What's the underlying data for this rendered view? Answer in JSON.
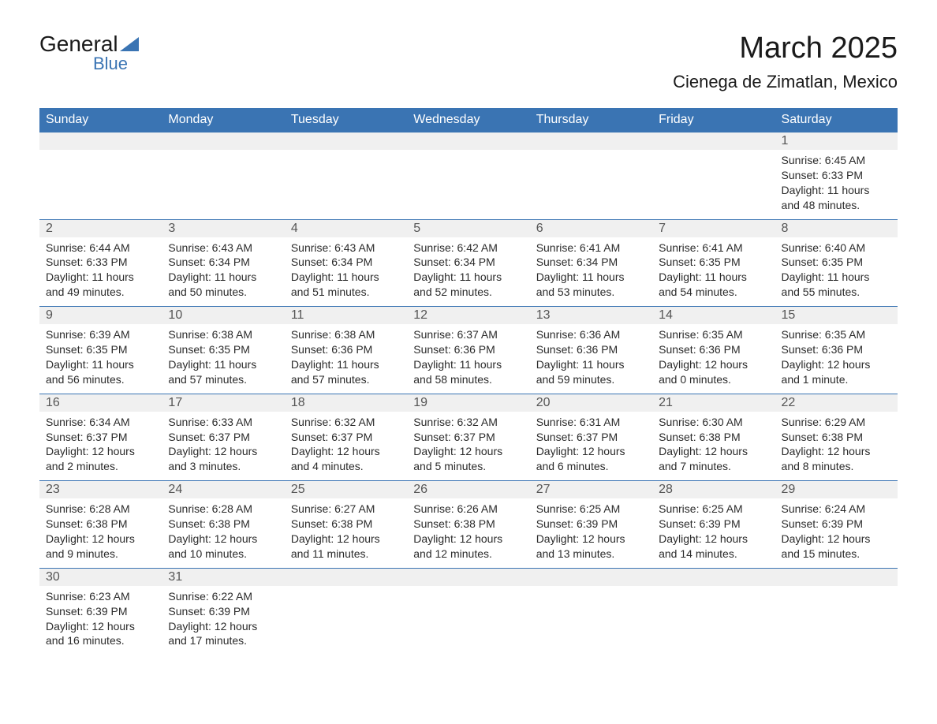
{
  "colors": {
    "primary_blue": "#3a74b3",
    "header_row_bg": "#f0f0f0",
    "text_dark": "#1a1a1a",
    "text_body": "#2b2b2b",
    "white": "#ffffff"
  },
  "logo": {
    "text1": "General",
    "text2": "Blue"
  },
  "title": "March 2025",
  "location": "Cienega de Zimatlan, Mexico",
  "day_headers": [
    "Sunday",
    "Monday",
    "Tuesday",
    "Wednesday",
    "Thursday",
    "Friday",
    "Saturday"
  ],
  "weeks": [
    [
      null,
      null,
      null,
      null,
      null,
      null,
      {
        "n": "1",
        "sr": "Sunrise: 6:45 AM",
        "ss": "Sunset: 6:33 PM",
        "dl1": "Daylight: 11 hours",
        "dl2": "and 48 minutes."
      }
    ],
    [
      {
        "n": "2",
        "sr": "Sunrise: 6:44 AM",
        "ss": "Sunset: 6:33 PM",
        "dl1": "Daylight: 11 hours",
        "dl2": "and 49 minutes."
      },
      {
        "n": "3",
        "sr": "Sunrise: 6:43 AM",
        "ss": "Sunset: 6:34 PM",
        "dl1": "Daylight: 11 hours",
        "dl2": "and 50 minutes."
      },
      {
        "n": "4",
        "sr": "Sunrise: 6:43 AM",
        "ss": "Sunset: 6:34 PM",
        "dl1": "Daylight: 11 hours",
        "dl2": "and 51 minutes."
      },
      {
        "n": "5",
        "sr": "Sunrise: 6:42 AM",
        "ss": "Sunset: 6:34 PM",
        "dl1": "Daylight: 11 hours",
        "dl2": "and 52 minutes."
      },
      {
        "n": "6",
        "sr": "Sunrise: 6:41 AM",
        "ss": "Sunset: 6:34 PM",
        "dl1": "Daylight: 11 hours",
        "dl2": "and 53 minutes."
      },
      {
        "n": "7",
        "sr": "Sunrise: 6:41 AM",
        "ss": "Sunset: 6:35 PM",
        "dl1": "Daylight: 11 hours",
        "dl2": "and 54 minutes."
      },
      {
        "n": "8",
        "sr": "Sunrise: 6:40 AM",
        "ss": "Sunset: 6:35 PM",
        "dl1": "Daylight: 11 hours",
        "dl2": "and 55 minutes."
      }
    ],
    [
      {
        "n": "9",
        "sr": "Sunrise: 6:39 AM",
        "ss": "Sunset: 6:35 PM",
        "dl1": "Daylight: 11 hours",
        "dl2": "and 56 minutes."
      },
      {
        "n": "10",
        "sr": "Sunrise: 6:38 AM",
        "ss": "Sunset: 6:35 PM",
        "dl1": "Daylight: 11 hours",
        "dl2": "and 57 minutes."
      },
      {
        "n": "11",
        "sr": "Sunrise: 6:38 AM",
        "ss": "Sunset: 6:36 PM",
        "dl1": "Daylight: 11 hours",
        "dl2": "and 57 minutes."
      },
      {
        "n": "12",
        "sr": "Sunrise: 6:37 AM",
        "ss": "Sunset: 6:36 PM",
        "dl1": "Daylight: 11 hours",
        "dl2": "and 58 minutes."
      },
      {
        "n": "13",
        "sr": "Sunrise: 6:36 AM",
        "ss": "Sunset: 6:36 PM",
        "dl1": "Daylight: 11 hours",
        "dl2": "and 59 minutes."
      },
      {
        "n": "14",
        "sr": "Sunrise: 6:35 AM",
        "ss": "Sunset: 6:36 PM",
        "dl1": "Daylight: 12 hours",
        "dl2": "and 0 minutes."
      },
      {
        "n": "15",
        "sr": "Sunrise: 6:35 AM",
        "ss": "Sunset: 6:36 PM",
        "dl1": "Daylight: 12 hours",
        "dl2": "and 1 minute."
      }
    ],
    [
      {
        "n": "16",
        "sr": "Sunrise: 6:34 AM",
        "ss": "Sunset: 6:37 PM",
        "dl1": "Daylight: 12 hours",
        "dl2": "and 2 minutes."
      },
      {
        "n": "17",
        "sr": "Sunrise: 6:33 AM",
        "ss": "Sunset: 6:37 PM",
        "dl1": "Daylight: 12 hours",
        "dl2": "and 3 minutes."
      },
      {
        "n": "18",
        "sr": "Sunrise: 6:32 AM",
        "ss": "Sunset: 6:37 PM",
        "dl1": "Daylight: 12 hours",
        "dl2": "and 4 minutes."
      },
      {
        "n": "19",
        "sr": "Sunrise: 6:32 AM",
        "ss": "Sunset: 6:37 PM",
        "dl1": "Daylight: 12 hours",
        "dl2": "and 5 minutes."
      },
      {
        "n": "20",
        "sr": "Sunrise: 6:31 AM",
        "ss": "Sunset: 6:37 PM",
        "dl1": "Daylight: 12 hours",
        "dl2": "and 6 minutes."
      },
      {
        "n": "21",
        "sr": "Sunrise: 6:30 AM",
        "ss": "Sunset: 6:38 PM",
        "dl1": "Daylight: 12 hours",
        "dl2": "and 7 minutes."
      },
      {
        "n": "22",
        "sr": "Sunrise: 6:29 AM",
        "ss": "Sunset: 6:38 PM",
        "dl1": "Daylight: 12 hours",
        "dl2": "and 8 minutes."
      }
    ],
    [
      {
        "n": "23",
        "sr": "Sunrise: 6:28 AM",
        "ss": "Sunset: 6:38 PM",
        "dl1": "Daylight: 12 hours",
        "dl2": "and 9 minutes."
      },
      {
        "n": "24",
        "sr": "Sunrise: 6:28 AM",
        "ss": "Sunset: 6:38 PM",
        "dl1": "Daylight: 12 hours",
        "dl2": "and 10 minutes."
      },
      {
        "n": "25",
        "sr": "Sunrise: 6:27 AM",
        "ss": "Sunset: 6:38 PM",
        "dl1": "Daylight: 12 hours",
        "dl2": "and 11 minutes."
      },
      {
        "n": "26",
        "sr": "Sunrise: 6:26 AM",
        "ss": "Sunset: 6:38 PM",
        "dl1": "Daylight: 12 hours",
        "dl2": "and 12 minutes."
      },
      {
        "n": "27",
        "sr": "Sunrise: 6:25 AM",
        "ss": "Sunset: 6:39 PM",
        "dl1": "Daylight: 12 hours",
        "dl2": "and 13 minutes."
      },
      {
        "n": "28",
        "sr": "Sunrise: 6:25 AM",
        "ss": "Sunset: 6:39 PM",
        "dl1": "Daylight: 12 hours",
        "dl2": "and 14 minutes."
      },
      {
        "n": "29",
        "sr": "Sunrise: 6:24 AM",
        "ss": "Sunset: 6:39 PM",
        "dl1": "Daylight: 12 hours",
        "dl2": "and 15 minutes."
      }
    ],
    [
      {
        "n": "30",
        "sr": "Sunrise: 6:23 AM",
        "ss": "Sunset: 6:39 PM",
        "dl1": "Daylight: 12 hours",
        "dl2": "and 16 minutes."
      },
      {
        "n": "31",
        "sr": "Sunrise: 6:22 AM",
        "ss": "Sunset: 6:39 PM",
        "dl1": "Daylight: 12 hours",
        "dl2": "and 17 minutes."
      },
      null,
      null,
      null,
      null,
      null
    ]
  ]
}
